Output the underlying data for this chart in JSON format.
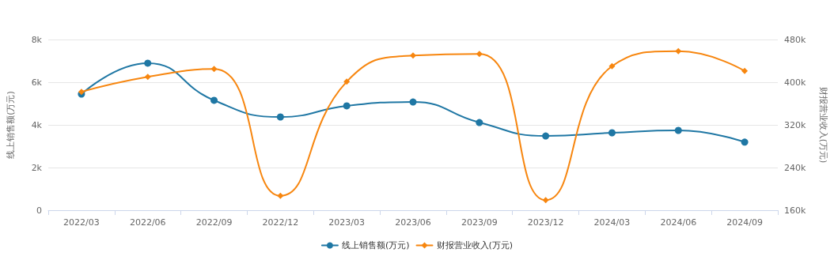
{
  "chart_data": {
    "type": "line",
    "ylabel": "线上销售额(万元)",
    "y2label": "财报营业收入(万元)",
    "categories": [
      "2022/03",
      "2022/06",
      "2022/09",
      "2022/12",
      "2023/03",
      "2023/06",
      "2023/09",
      "2023/12",
      "2024/03",
      "2024/06",
      "2024/09"
    ],
    "series": [
      {
        "name": "线上销售额(万元)",
        "color": "#1f77a4",
        "marker": "circle",
        "values": [
          5440,
          6890,
          5150,
          4370,
          4890,
          5070,
          4110,
          3480,
          3630,
          3740,
          3190
        ]
      },
      {
        "name": "财报营业收入(万元)",
        "color": "#f7860f",
        "marker": "diamond",
        "axis": "y2",
        "values": [
          382000,
          410000,
          425000,
          187000,
          401000,
          450000,
          453000,
          179000,
          430000,
          458000,
          421000
        ]
      }
    ],
    "ylim": [
      0,
      8000
    ],
    "yticks": [
      0,
      {
        "value": 2000,
        "label": "2k"
      },
      {
        "value": 4000,
        "label": "4k"
      },
      {
        "value": 6000,
        "label": "6k"
      },
      {
        "value": 8000,
        "label": "8k"
      }
    ],
    "y2lim": [
      160000,
      480000
    ],
    "y2ticks": [
      {
        "value": 160000,
        "label": "160k"
      },
      {
        "value": 240000,
        "label": "240k"
      },
      {
        "value": 320000,
        "label": "320k"
      },
      {
        "value": 400000,
        "label": "400k"
      },
      {
        "value": 480000,
        "label": "480k"
      }
    ],
    "grid": "y",
    "legend": "bottom",
    "line_style": "solid"
  }
}
